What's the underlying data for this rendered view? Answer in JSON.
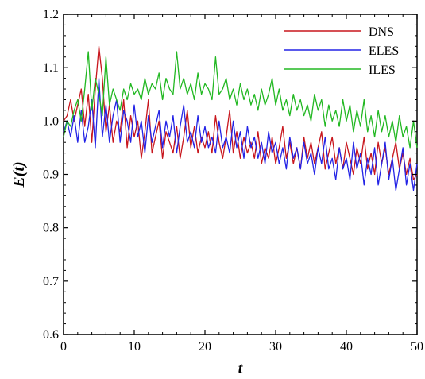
{
  "chart_data": {
    "type": "line",
    "title": "",
    "xlabel": "t",
    "ylabel": "E(t)",
    "xlim": [
      0,
      50
    ],
    "ylim": [
      0.6,
      1.2
    ],
    "x_ticks": [
      0,
      10,
      20,
      30,
      40,
      50
    ],
    "y_ticks": [
      0.6,
      0.7,
      0.8,
      0.9,
      1.0,
      1.1,
      1.2
    ],
    "x_tick_labels": [
      "0",
      "10",
      "20",
      "30",
      "40",
      "50"
    ],
    "y_tick_labels": [
      "0.6",
      "0.7",
      "0.8",
      "0.9",
      "1.0",
      "1.1",
      "1.2"
    ],
    "grid": false,
    "legend": "top-right",
    "series": [
      {
        "name": "DNS",
        "color": "#c8161d",
        "x": [
          0,
          0.5,
          1,
          1.5,
          2,
          2.5,
          3,
          3.5,
          4,
          4.5,
          5,
          5.5,
          6,
          6.5,
          7,
          7.5,
          8,
          8.5,
          9,
          9.5,
          10,
          10.5,
          11,
          11.5,
          12,
          12.5,
          13,
          13.5,
          14,
          14.5,
          15,
          15.5,
          16,
          16.5,
          17,
          17.5,
          18,
          18.5,
          19,
          19.5,
          20,
          20.5,
          21,
          21.5,
          22,
          22.5,
          23,
          23.5,
          24,
          24.5,
          25,
          25.5,
          26,
          26.5,
          27,
          27.5,
          28,
          28.5,
          29,
          29.5,
          30,
          30.5,
          31,
          31.5,
          32,
          32.5,
          33,
          33.5,
          34,
          34.5,
          35,
          35.5,
          36,
          36.5,
          37,
          37.5,
          38,
          38.5,
          39,
          39.5,
          40,
          40.5,
          41,
          41.5,
          42,
          42.5,
          43,
          43.5,
          44,
          44.5,
          45,
          45.5,
          46,
          46.5,
          47,
          47.5,
          48,
          48.5,
          49,
          49.5,
          50
        ],
        "values": [
          1.0,
          1.01,
          1.04,
          1.0,
          1.03,
          1.06,
          0.99,
          1.05,
          0.96,
          1.06,
          1.14,
          1.08,
          0.98,
          1.03,
          0.96,
          1.0,
          0.98,
          1.04,
          0.95,
          1.01,
          0.97,
          1.0,
          0.93,
          0.98,
          1.04,
          0.94,
          0.97,
          1.0,
          0.93,
          0.98,
          0.96,
          0.94,
          0.99,
          0.93,
          0.97,
          1.02,
          0.95,
          0.99,
          0.94,
          0.97,
          0.95,
          0.98,
          0.94,
          1.01,
          0.96,
          0.93,
          0.97,
          1.02,
          0.94,
          0.98,
          0.93,
          0.97,
          0.94,
          0.96,
          0.93,
          0.98,
          0.92,
          0.95,
          0.93,
          0.97,
          0.92,
          0.95,
          0.99,
          0.93,
          0.96,
          0.92,
          0.95,
          0.91,
          0.97,
          0.93,
          0.96,
          0.92,
          0.95,
          0.98,
          0.91,
          0.94,
          0.97,
          0.92,
          0.95,
          0.91,
          0.96,
          0.93,
          0.9,
          0.95,
          0.92,
          0.97,
          0.91,
          0.94,
          0.9,
          0.96,
          0.92,
          0.95,
          0.9,
          0.93,
          0.96,
          0.91,
          0.94,
          0.9,
          0.93,
          0.89,
          0.9
        ]
      },
      {
        "name": "ELES",
        "color": "#2323e6",
        "x": [
          0,
          0.5,
          1,
          1.5,
          2,
          2.5,
          3,
          3.5,
          4,
          4.5,
          5,
          5.5,
          6,
          6.5,
          7,
          7.5,
          8,
          8.5,
          9,
          9.5,
          10,
          10.5,
          11,
          11.5,
          12,
          12.5,
          13,
          13.5,
          14,
          14.5,
          15,
          15.5,
          16,
          16.5,
          17,
          17.5,
          18,
          18.5,
          19,
          19.5,
          20,
          20.5,
          21,
          21.5,
          22,
          22.5,
          23,
          23.5,
          24,
          24.5,
          25,
          25.5,
          26,
          26.5,
          27,
          27.5,
          28,
          28.5,
          29,
          29.5,
          30,
          30.5,
          31,
          31.5,
          32,
          32.5,
          33,
          33.5,
          34,
          34.5,
          35,
          35.5,
          36,
          36.5,
          37,
          37.5,
          38,
          38.5,
          39,
          39.5,
          40,
          40.5,
          41,
          41.5,
          42,
          42.5,
          43,
          43.5,
          44,
          44.5,
          45,
          45.5,
          46,
          46.5,
          47,
          47.5,
          48,
          48.5,
          49,
          49.5,
          50
        ],
        "values": [
          0.98,
          1.0,
          0.97,
          1.01,
          0.96,
          1.02,
          0.96,
          0.99,
          1.04,
          0.95,
          1.08,
          0.97,
          1.03,
          0.96,
          1.01,
          1.04,
          0.96,
          1.02,
          1.0,
          0.96,
          1.03,
          0.97,
          1.0,
          0.94,
          1.01,
          0.96,
          0.99,
          1.02,
          0.95,
          1.0,
          0.97,
          1.01,
          0.94,
          0.99,
          1.03,
          0.96,
          0.98,
          0.95,
          1.01,
          0.96,
          0.99,
          0.95,
          0.97,
          0.94,
          1.0,
          0.95,
          0.97,
          0.94,
          1.0,
          0.95,
          0.98,
          0.93,
          0.99,
          0.95,
          0.97,
          0.93,
          0.96,
          0.92,
          0.98,
          0.94,
          0.96,
          0.92,
          0.95,
          0.91,
          0.97,
          0.93,
          0.95,
          0.91,
          0.96,
          0.92,
          0.94,
          0.9,
          0.95,
          0.92,
          0.97,
          0.91,
          0.93,
          0.89,
          0.95,
          0.91,
          0.93,
          0.89,
          0.96,
          0.91,
          0.94,
          0.88,
          0.93,
          0.9,
          0.95,
          0.88,
          0.92,
          0.96,
          0.89,
          0.93,
          0.87,
          0.91,
          0.95,
          0.88,
          0.92,
          0.87,
          0.92
        ]
      },
      {
        "name": "ILES",
        "color": "#22b822",
        "x": [
          0,
          0.5,
          1,
          1.5,
          2,
          2.5,
          3,
          3.5,
          4,
          4.5,
          5,
          5.5,
          6,
          6.5,
          7,
          7.5,
          8,
          8.5,
          9,
          9.5,
          10,
          10.5,
          11,
          11.5,
          12,
          12.5,
          13,
          13.5,
          14,
          14.5,
          15,
          15.5,
          16,
          16.5,
          17,
          17.5,
          18,
          18.5,
          19,
          19.5,
          20,
          20.5,
          21,
          21.5,
          22,
          22.5,
          23,
          23.5,
          24,
          24.5,
          25,
          25.5,
          26,
          26.5,
          27,
          27.5,
          28,
          28.5,
          29,
          29.5,
          30,
          30.5,
          31,
          31.5,
          32,
          32.5,
          33,
          33.5,
          34,
          34.5,
          35,
          35.5,
          36,
          36.5,
          37,
          37.5,
          38,
          38.5,
          39,
          39.5,
          40,
          40.5,
          41,
          41.5,
          42,
          42.5,
          43,
          43.5,
          44,
          44.5,
          45,
          45.5,
          46,
          46.5,
          47,
          47.5,
          48,
          48.5,
          49,
          49.5,
          50
        ],
        "values": [
          0.97,
          1.0,
          0.99,
          1.02,
          1.04,
          1.0,
          1.06,
          1.13,
          1.02,
          1.08,
          1.05,
          1.01,
          1.12,
          1.03,
          1.06,
          1.04,
          1.02,
          1.06,
          1.04,
          1.07,
          1.05,
          1.06,
          1.04,
          1.08,
          1.05,
          1.07,
          1.06,
          1.09,
          1.04,
          1.08,
          1.06,
          1.05,
          1.13,
          1.06,
          1.08,
          1.05,
          1.07,
          1.04,
          1.09,
          1.05,
          1.07,
          1.06,
          1.04,
          1.12,
          1.05,
          1.06,
          1.08,
          1.04,
          1.06,
          1.03,
          1.07,
          1.04,
          1.06,
          1.03,
          1.05,
          1.02,
          1.06,
          1.03,
          1.05,
          1.08,
          1.03,
          1.06,
          1.02,
          1.04,
          1.01,
          1.05,
          1.02,
          1.04,
          1.01,
          1.03,
          1.0,
          1.05,
          1.02,
          1.04,
          0.99,
          1.03,
          1.0,
          1.02,
          0.99,
          1.04,
          1.0,
          1.03,
          0.98,
          1.02,
          0.99,
          1.04,
          0.98,
          1.01,
          0.97,
          1.02,
          0.98,
          1.01,
          0.97,
          1.0,
          0.96,
          1.01,
          0.97,
          0.99,
          0.95,
          1.0,
          0.95
        ]
      }
    ]
  }
}
